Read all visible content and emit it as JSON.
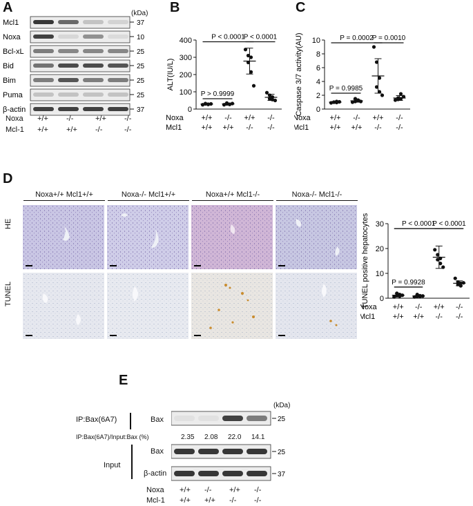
{
  "panels": [
    "A",
    "B",
    "C",
    "D",
    "E"
  ],
  "genotype_rows": {
    "noxa_label": "Noxa",
    "mcl1_label": "Mcl-1",
    "mcl1_label_alt": "Mcl1",
    "noxa": [
      "+/+",
      "-/-",
      "+/+",
      "-/-"
    ],
    "mcl1": [
      "+/+",
      "+/+",
      "-/-",
      "-/-"
    ]
  },
  "panel_a": {
    "kda_label": "(kDa)",
    "bands": [
      {
        "name": "Mcl1",
        "kda": "37",
        "intensity": [
          0.9,
          0.65,
          0.2,
          0.12
        ]
      },
      {
        "name": "Noxa",
        "kda": "10",
        "intensity": [
          0.85,
          0.1,
          0.45,
          0.08
        ]
      },
      {
        "name": "Bcl-xL",
        "kda": "25",
        "intensity": [
          0.55,
          0.5,
          0.5,
          0.5
        ]
      },
      {
        "name": "Bid",
        "kda": "25",
        "intensity": [
          0.6,
          0.8,
          0.8,
          0.75
        ]
      },
      {
        "name": "Bim",
        "kda": "25",
        "intensity": [
          0.55,
          0.75,
          0.55,
          0.55
        ]
      },
      {
        "name": "Puma",
        "kda": "25",
        "intensity": [
          0.2,
          0.2,
          0.2,
          0.2
        ]
      },
      {
        "name": "β-actin",
        "kda": "37",
        "intensity": [
          0.85,
          0.85,
          0.85,
          0.85
        ]
      }
    ]
  },
  "panel_d": {
    "columns": [
      "Noxa+/+ Mcl1+/+",
      "Noxa-/- Mcl1+/+",
      "Noxa+/+ Mcl1-/-",
      "Noxa-/- Mcl1-/-"
    ],
    "rows": [
      "HE",
      "TUNEL"
    ]
  },
  "panel_e": {
    "kda_label": "(kDa)",
    "ip_label": "IP:Bax(6A7)",
    "bax_label": "Bax",
    "ratio_label": "IP:Bax(6A7)/Input:Bax (%)",
    "ratios": [
      "2.35",
      "2.08",
      "22.0",
      "14.1"
    ],
    "input_label": "Input",
    "actin_label": "β-actin",
    "kda_marks": [
      "25",
      "25",
      "37"
    ],
    "ip_intensity": [
      0.05,
      0.05,
      0.85,
      0.55
    ],
    "input_bax_intensity": [
      0.9,
      0.9,
      0.9,
      0.9
    ],
    "input_actin_intensity": [
      0.9,
      0.9,
      0.9,
      0.9
    ]
  },
  "chart_data": [
    {
      "type": "scatter",
      "panel": "B",
      "ylabel": "ALT(IU/L)",
      "ylim": [
        0,
        400
      ],
      "yticks": [
        0,
        100,
        200,
        300,
        400
      ],
      "groups": [
        {
          "values": [
            25,
            30,
            28,
            32,
            27,
            30
          ],
          "mean": 29,
          "sd": 3
        },
        {
          "values": [
            25,
            30,
            28,
            35,
            27,
            32
          ],
          "mean": 30,
          "sd": 4
        },
        {
          "values": [
            345,
            310,
            300,
            270,
            215,
            135
          ],
          "mean": 278,
          "sd": 75
        },
        {
          "values": [
            95,
            80,
            70,
            60,
            55,
            50
          ],
          "mean": 68,
          "sd": 18
        }
      ],
      "comparisons": [
        {
          "label": "P > 0.9999",
          "from": 0,
          "to": 1,
          "at": 60
        },
        {
          "label": "P < 0.0001",
          "from": 0,
          "to": 2,
          "at": 390
        },
        {
          "label": "P < 0.0001",
          "from": 2,
          "to": 3,
          "at": 390
        }
      ]
    },
    {
      "type": "scatter",
      "panel": "C",
      "ylabel": "Caspase 3/7 activity(AU)",
      "ylim": [
        0,
        10
      ],
      "yticks": [
        0,
        2,
        4,
        6,
        8,
        10
      ],
      "groups": [
        {
          "values": [
            0.9,
            1.0,
            1.1,
            1.0,
            0.95,
            1.05
          ],
          "mean": 1.0,
          "sd": 0.1
        },
        {
          "values": [
            1.0,
            1.1,
            1.3,
            1.5,
            1.2,
            1.1
          ],
          "mean": 1.2,
          "sd": 0.2
        },
        {
          "values": [
            9.0,
            6.8,
            4.5,
            3.2,
            2.5,
            2.0
          ],
          "mean": 4.8,
          "sd": 2.5
        },
        {
          "values": [
            1.3,
            1.6,
            2.2,
            1.4,
            1.5,
            1.8
          ],
          "mean": 1.6,
          "sd": 0.35
        }
      ],
      "comparisons": [
        {
          "label": "P = 0.9985",
          "from": 0,
          "to": 1,
          "at": 2.3
        },
        {
          "label": "P = 0.0002",
          "from": 0,
          "to": 2,
          "at": 9.6
        },
        {
          "label": "P = 0.0010",
          "from": 2,
          "to": 3,
          "at": 9.6
        }
      ]
    },
    {
      "type": "scatter",
      "panel": "D",
      "ylabel": "TUNEL positive hepatocytes",
      "ylim": [
        0,
        30
      ],
      "yticks": [
        0,
        10,
        20,
        30
      ],
      "groups": [
        {
          "values": [
            0.5,
            1.0,
            1.5,
            2.0,
            0.8,
            1.2
          ],
          "mean": 1.2,
          "sd": 0.5
        },
        {
          "values": [
            0.5,
            0.8,
            1.0,
            1.5,
            0.7,
            0.9
          ],
          "mean": 0.9,
          "sd": 0.3
        },
        {
          "values": [
            19.5,
            17.5,
            16.0,
            15.5,
            14.0,
            12.5
          ],
          "mean": 16.5,
          "sd": 4.5
        },
        {
          "values": [
            8.0,
            6.5,
            6.0,
            5.5,
            5.0,
            6.2
          ],
          "mean": 6.0,
          "sd": 1.0
        }
      ],
      "comparisons": [
        {
          "label": "P = 0.9928",
          "from": 0,
          "to": 1,
          "at": 4.5
        },
        {
          "label": "P < 0.0001",
          "from": 0,
          "to": 2,
          "at": 28
        },
        {
          "label": "P < 0.0001",
          "from": 2,
          "to": 3,
          "at": 28
        }
      ]
    }
  ]
}
